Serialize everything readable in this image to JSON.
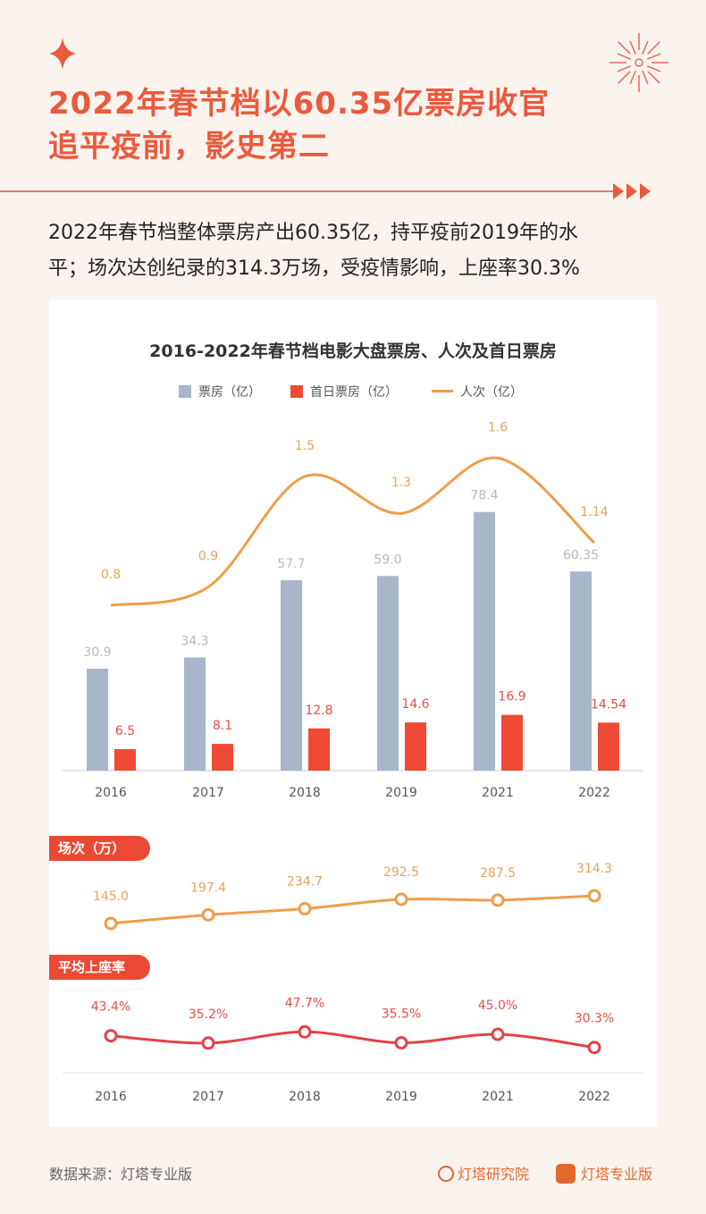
{
  "header": {
    "title_line1": "2022年春节档以60.35亿票房收官",
    "title_line2": "追平疫前，影史第二",
    "summary_line1": "2022年春节档整体票房产出60.35亿，持平疫前2019年的水",
    "summary_line2": "平；场次达创纪录的314.3万场，受疫情影响，上座率30.3%"
  },
  "colors": {
    "accent": "#ea5a3d",
    "gray_bar": "#a9b5c9",
    "red_bar": "#ef4a35",
    "orange_line": "#ee9e4a",
    "red_line": "#e0434a"
  },
  "chart_data": [
    {
      "type": "bar",
      "title": "2016-2022年春节档电影大盘票房、人次及首日票房",
      "categories": [
        "2016",
        "2017",
        "2018",
        "2019",
        "2021",
        "2022"
      ],
      "series": [
        {
          "name": "票房（亿）",
          "type": "bar",
          "values": [
            30.9,
            34.3,
            57.7,
            59.0,
            78.4,
            60.35
          ],
          "labels": [
            "30.9",
            "34.3",
            "57.7",
            "59.0",
            "78.4",
            "60.35"
          ]
        },
        {
          "name": "首日票房（亿）",
          "type": "bar",
          "values": [
            6.5,
            8.1,
            12.8,
            14.6,
            16.9,
            14.54
          ],
          "labels": [
            "6.5",
            "8.1",
            "12.8",
            "14.6",
            "16.9",
            "14.54"
          ]
        },
        {
          "name": "人次（亿）",
          "type": "line",
          "values": [
            0.8,
            0.9,
            1.5,
            1.3,
            1.6,
            1.14
          ],
          "labels": [
            "0.8",
            "0.9",
            "1.5",
            "1.3",
            "1.6",
            "1.14"
          ]
        }
      ],
      "legend": "top"
    },
    {
      "type": "line",
      "title": "场次（万）",
      "categories": [
        "2016",
        "2017",
        "2018",
        "2019",
        "2021",
        "2022"
      ],
      "values": [
        145.0,
        197.4,
        234.7,
        292.5,
        287.5,
        314.3
      ],
      "labels": [
        "145.0",
        "197.4",
        "234.7",
        "292.5",
        "287.5",
        "314.3"
      ]
    },
    {
      "type": "line",
      "title": "平均上座率",
      "categories": [
        "2016",
        "2017",
        "2018",
        "2019",
        "2021",
        "2022"
      ],
      "values": [
        43.4,
        35.2,
        47.7,
        35.5,
        45.0,
        30.3
      ],
      "labels": [
        "43.4%",
        "35.2%",
        "47.7%",
        "35.5%",
        "45.0%",
        "30.3%"
      ]
    }
  ],
  "footer": {
    "source": "数据来源：灯塔专业版",
    "logo1": "灯塔研究院",
    "logo2": "灯塔专业版"
  }
}
